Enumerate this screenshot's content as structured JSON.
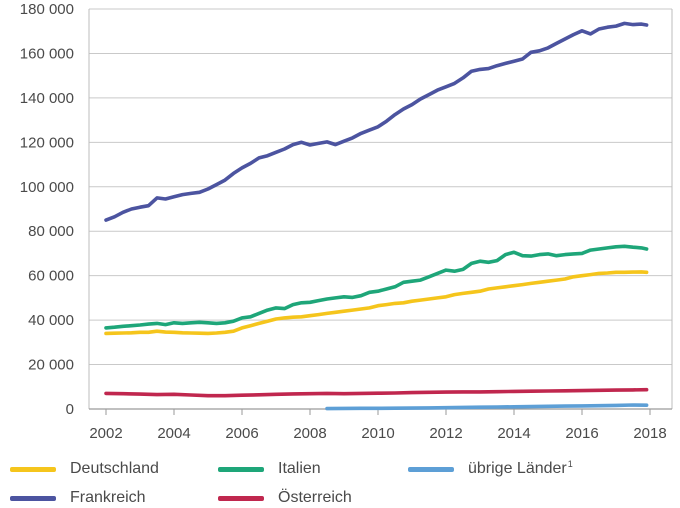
{
  "chart_data": {
    "type": "line",
    "xlabel": "",
    "ylabel": "",
    "xlim": [
      2002,
      2018
    ],
    "ylim": [
      0,
      180000
    ],
    "grid": "y",
    "x_ticks": [
      "2002",
      "2004",
      "2006",
      "2008",
      "2010",
      "2012",
      "2014",
      "2016",
      "2018"
    ],
    "y_ticks": [
      "0",
      "20 000",
      "40 000",
      "60 000",
      "80 000",
      "100 000",
      "120 000",
      "140 000",
      "160 000",
      "180 000"
    ],
    "y_tick_values": [
      0,
      20000,
      40000,
      60000,
      80000,
      100000,
      120000,
      140000,
      160000,
      180000
    ],
    "x_tick_values": [
      2002,
      2004,
      2006,
      2008,
      2010,
      2012,
      2014,
      2016,
      2018
    ],
    "legend": [
      {
        "name": "Deutschland",
        "color": "#f5c51c"
      },
      {
        "name": "Italien",
        "color": "#1ea679"
      },
      {
        "name": "übrige Länder",
        "sup": "1",
        "color": "#5d9fd6"
      },
      {
        "name": "Frankreich",
        "color": "#4c54a0"
      },
      {
        "name": "Österreich",
        "color": "#c0274e"
      }
    ],
    "series": [
      {
        "name": "Frankreich",
        "color": "#4c54a0",
        "x": [
          2002.0,
          2002.25,
          2002.5,
          2002.75,
          2003.0,
          2003.25,
          2003.5,
          2003.75,
          2004.0,
          2004.25,
          2004.5,
          2004.75,
          2005.0,
          2005.25,
          2005.5,
          2005.75,
          2006.0,
          2006.25,
          2006.5,
          2006.75,
          2007.0,
          2007.25,
          2007.5,
          2007.75,
          2008.0,
          2008.25,
          2008.5,
          2008.75,
          2009.0,
          2009.25,
          2009.5,
          2009.75,
          2010.0,
          2010.25,
          2010.5,
          2010.75,
          2011.0,
          2011.25,
          2011.5,
          2011.75,
          2012.0,
          2012.25,
          2012.5,
          2012.75,
          2013.0,
          2013.25,
          2013.5,
          2013.75,
          2014.0,
          2014.25,
          2014.5,
          2014.75,
          2015.0,
          2015.25,
          2015.5,
          2015.75,
          2016.0,
          2016.25,
          2016.5,
          2016.75,
          2017.0,
          2017.25,
          2017.5,
          2017.75,
          2017.9
        ],
        "values": [
          85000,
          86500,
          88500,
          90000,
          90800,
          91500,
          95000,
          94500,
          95500,
          96500,
          97000,
          97500,
          99000,
          101000,
          103000,
          106000,
          108500,
          110500,
          113000,
          114000,
          115500,
          117000,
          119000,
          120000,
          118800,
          119500,
          120200,
          119000,
          120500,
          122000,
          124000,
          125500,
          127000,
          129500,
          132500,
          135000,
          137000,
          139500,
          141500,
          143500,
          145000,
          146500,
          149000,
          152000,
          152800,
          153200,
          154500,
          155500,
          156500,
          157500,
          160500,
          161200,
          162500,
          164500,
          166500,
          168500,
          170200,
          168800,
          171000,
          171800,
          172300,
          173500,
          173000,
          173200,
          172800
        ]
      },
      {
        "name": "Italien",
        "color": "#1ea679",
        "x": [
          2002.0,
          2002.25,
          2002.5,
          2002.75,
          2003.0,
          2003.25,
          2003.5,
          2003.75,
          2004.0,
          2004.25,
          2004.5,
          2004.75,
          2005.0,
          2005.25,
          2005.5,
          2005.75,
          2006.0,
          2006.25,
          2006.5,
          2006.75,
          2007.0,
          2007.25,
          2007.5,
          2007.75,
          2008.0,
          2008.25,
          2008.5,
          2008.75,
          2009.0,
          2009.25,
          2009.5,
          2009.75,
          2010.0,
          2010.25,
          2010.5,
          2010.75,
          2011.0,
          2011.25,
          2011.5,
          2011.75,
          2012.0,
          2012.25,
          2012.5,
          2012.75,
          2013.0,
          2013.25,
          2013.5,
          2013.75,
          2014.0,
          2014.25,
          2014.5,
          2014.75,
          2015.0,
          2015.25,
          2015.5,
          2015.75,
          2016.0,
          2016.25,
          2016.5,
          2016.75,
          2017.0,
          2017.25,
          2017.5,
          2017.75,
          2017.9
        ],
        "values": [
          36500,
          36800,
          37200,
          37500,
          37800,
          38200,
          38500,
          38000,
          38800,
          38500,
          38800,
          39000,
          38800,
          38500,
          38800,
          39500,
          41000,
          41500,
          43000,
          44500,
          45500,
          45200,
          47000,
          47800,
          48000,
          48800,
          49500,
          50000,
          50500,
          50200,
          51000,
          52500,
          53000,
          54000,
          55000,
          57000,
          57500,
          58000,
          59500,
          61000,
          62500,
          62000,
          62800,
          65500,
          66500,
          66000,
          66800,
          69500,
          70500,
          69000,
          68800,
          69500,
          69800,
          69000,
          69500,
          69800,
          70000,
          71500,
          72000,
          72500,
          73000,
          73200,
          72800,
          72500,
          72000
        ]
      },
      {
        "name": "Deutschland",
        "color": "#f5c51c",
        "x": [
          2002.0,
          2002.25,
          2002.5,
          2002.75,
          2003.0,
          2003.25,
          2003.5,
          2003.75,
          2004.0,
          2004.25,
          2004.5,
          2004.75,
          2005.0,
          2005.25,
          2005.5,
          2005.75,
          2006.0,
          2006.25,
          2006.5,
          2006.75,
          2007.0,
          2007.25,
          2007.5,
          2007.75,
          2008.0,
          2008.25,
          2008.5,
          2008.75,
          2009.0,
          2009.25,
          2009.5,
          2009.75,
          2010.0,
          2010.25,
          2010.5,
          2010.75,
          2011.0,
          2011.25,
          2011.5,
          2011.75,
          2012.0,
          2012.25,
          2012.5,
          2012.75,
          2013.0,
          2013.25,
          2013.5,
          2013.75,
          2014.0,
          2014.25,
          2014.5,
          2014.75,
          2015.0,
          2015.25,
          2015.5,
          2015.75,
          2016.0,
          2016.25,
          2016.5,
          2016.75,
          2017.0,
          2017.25,
          2017.5,
          2017.75,
          2017.9
        ],
        "values": [
          34000,
          34100,
          34200,
          34300,
          34500,
          34500,
          35000,
          34600,
          34500,
          34300,
          34200,
          34100,
          34000,
          34200,
          34500,
          35000,
          36500,
          37500,
          38500,
          39500,
          40500,
          41000,
          41300,
          41500,
          42000,
          42500,
          43000,
          43500,
          44000,
          44500,
          45000,
          45500,
          46500,
          47000,
          47500,
          47800,
          48500,
          49000,
          49500,
          50000,
          50500,
          51500,
          52000,
          52500,
          53000,
          54000,
          54500,
          55000,
          55500,
          56000,
          56500,
          57000,
          57500,
          58000,
          58500,
          59500,
          60000,
          60500,
          61000,
          61200,
          61500,
          61500,
          61600,
          61700,
          61500
        ]
      },
      {
        "name": "Österreich",
        "color": "#c0274e",
        "x": [
          2002.0,
          2002.5,
          2003.0,
          2003.5,
          2004.0,
          2004.5,
          2005.0,
          2005.5,
          2006.0,
          2006.5,
          2007.0,
          2007.5,
          2008.0,
          2008.5,
          2009.0,
          2009.5,
          2010.0,
          2010.5,
          2011.0,
          2011.5,
          2012.0,
          2012.5,
          2013.0,
          2013.5,
          2014.0,
          2014.5,
          2015.0,
          2015.5,
          2016.0,
          2016.5,
          2017.0,
          2017.5,
          2017.9
        ],
        "values": [
          7000,
          6900,
          6700,
          6500,
          6600,
          6300,
          6000,
          6000,
          6200,
          6400,
          6600,
          6800,
          6900,
          7000,
          6900,
          7000,
          7100,
          7200,
          7400,
          7500,
          7600,
          7700,
          7700,
          7800,
          7900,
          8000,
          8100,
          8200,
          8300,
          8400,
          8500,
          8600,
          8700
        ]
      },
      {
        "name": "übrige Länder",
        "color": "#5d9fd6",
        "x": [
          2008.5,
          2009.0,
          2009.5,
          2010.0,
          2010.5,
          2011.0,
          2011.5,
          2012.0,
          2012.5,
          2013.0,
          2013.5,
          2014.0,
          2014.5,
          2015.0,
          2015.5,
          2016.0,
          2016.5,
          2017.0,
          2017.5,
          2017.9
        ],
        "values": [
          200,
          250,
          300,
          300,
          350,
          400,
          500,
          600,
          700,
          800,
          900,
          1000,
          1100,
          1200,
          1300,
          1400,
          1500,
          1600,
          1800,
          1700
        ]
      }
    ]
  }
}
